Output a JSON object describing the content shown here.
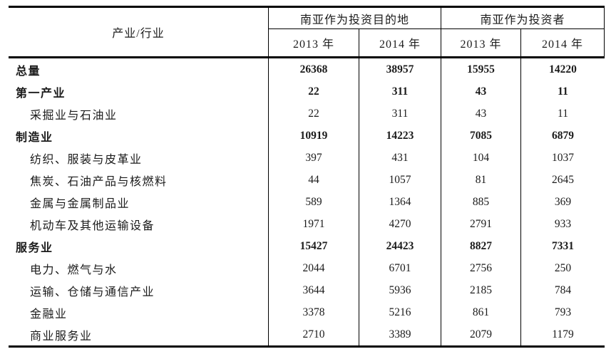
{
  "table": {
    "corner_header": "产业/行业",
    "col_groups": [
      {
        "label": "南亚作为投资目的地",
        "years": [
          "2013 年",
          "2014 年"
        ]
      },
      {
        "label": "南亚作为投资者",
        "years": [
          "2013 年",
          "2014 年"
        ]
      }
    ],
    "rows": [
      {
        "label": "总量",
        "bold": true,
        "indent": false,
        "values": [
          "26368",
          "38957",
          "15955",
          "14220"
        ]
      },
      {
        "label": "第一产业",
        "bold": true,
        "indent": false,
        "values": [
          "22",
          "311",
          "43",
          "11"
        ]
      },
      {
        "label": "采掘业与石油业",
        "bold": false,
        "indent": true,
        "values": [
          "22",
          "311",
          "43",
          "11"
        ]
      },
      {
        "label": "制造业",
        "bold": true,
        "indent": false,
        "values": [
          "10919",
          "14223",
          "7085",
          "6879"
        ]
      },
      {
        "label": "纺织、服装与皮革业",
        "bold": false,
        "indent": true,
        "values": [
          "397",
          "431",
          "104",
          "1037"
        ]
      },
      {
        "label": "焦炭、石油产品与核燃料",
        "bold": false,
        "indent": true,
        "values": [
          "44",
          "1057",
          "81",
          "2645"
        ]
      },
      {
        "label": "金属与金属制品业",
        "bold": false,
        "indent": true,
        "values": [
          "589",
          "1364",
          "885",
          "369"
        ]
      },
      {
        "label": "机动车及其他运输设备",
        "bold": false,
        "indent": true,
        "values": [
          "1971",
          "4270",
          "2791",
          "933"
        ]
      },
      {
        "label": "服务业",
        "bold": true,
        "indent": false,
        "values": [
          "15427",
          "24423",
          "8827",
          "7331"
        ]
      },
      {
        "label": "电力、燃气与水",
        "bold": false,
        "indent": true,
        "values": [
          "2044",
          "6701",
          "2756",
          "250"
        ]
      },
      {
        "label": "运输、仓储与通信产业",
        "bold": false,
        "indent": true,
        "values": [
          "3644",
          "5936",
          "2185",
          "784"
        ]
      },
      {
        "label": "金融业",
        "bold": false,
        "indent": true,
        "values": [
          "3378",
          "5216",
          "861",
          "793"
        ]
      },
      {
        "label": "商业服务业",
        "bold": false,
        "indent": true,
        "values": [
          "2710",
          "3389",
          "2079",
          "1179"
        ]
      }
    ],
    "colors": {
      "border": "#000000",
      "text": "#1b1b1b",
      "background": "#ffffff"
    }
  }
}
